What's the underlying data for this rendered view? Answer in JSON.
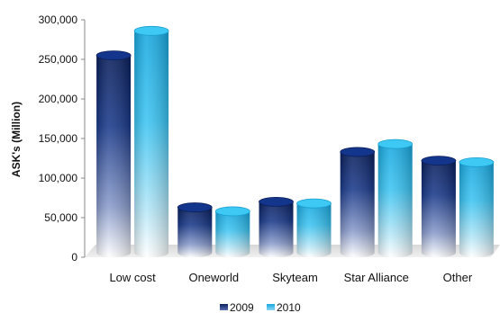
{
  "chart_data": {
    "type": "bar",
    "title": "",
    "xlabel": "",
    "ylabel": "ASK's (Million)",
    "ylim": [
      0,
      300000
    ],
    "yticks": [
      0,
      50000,
      100000,
      150000,
      200000,
      250000,
      300000
    ],
    "ytick_labels": [
      "0",
      "50,000",
      "100,000",
      "150,000",
      "200,000",
      "250,000",
      "300,000"
    ],
    "categories": [
      "Low cost",
      "Oneworld",
      "Skyteam",
      "Star Alliance",
      "Other"
    ],
    "series": [
      {
        "name": "2009",
        "values": [
          255000,
          63000,
          70000,
          133000,
          122000
        ],
        "color": "#0c2a6e"
      },
      {
        "name": "2010",
        "values": [
          286000,
          58000,
          68000,
          143000,
          120000
        ],
        "color": "#1fb3e8"
      }
    ],
    "legend_position": "bottom",
    "grid": false,
    "bar_style": "3d-cylinder"
  }
}
